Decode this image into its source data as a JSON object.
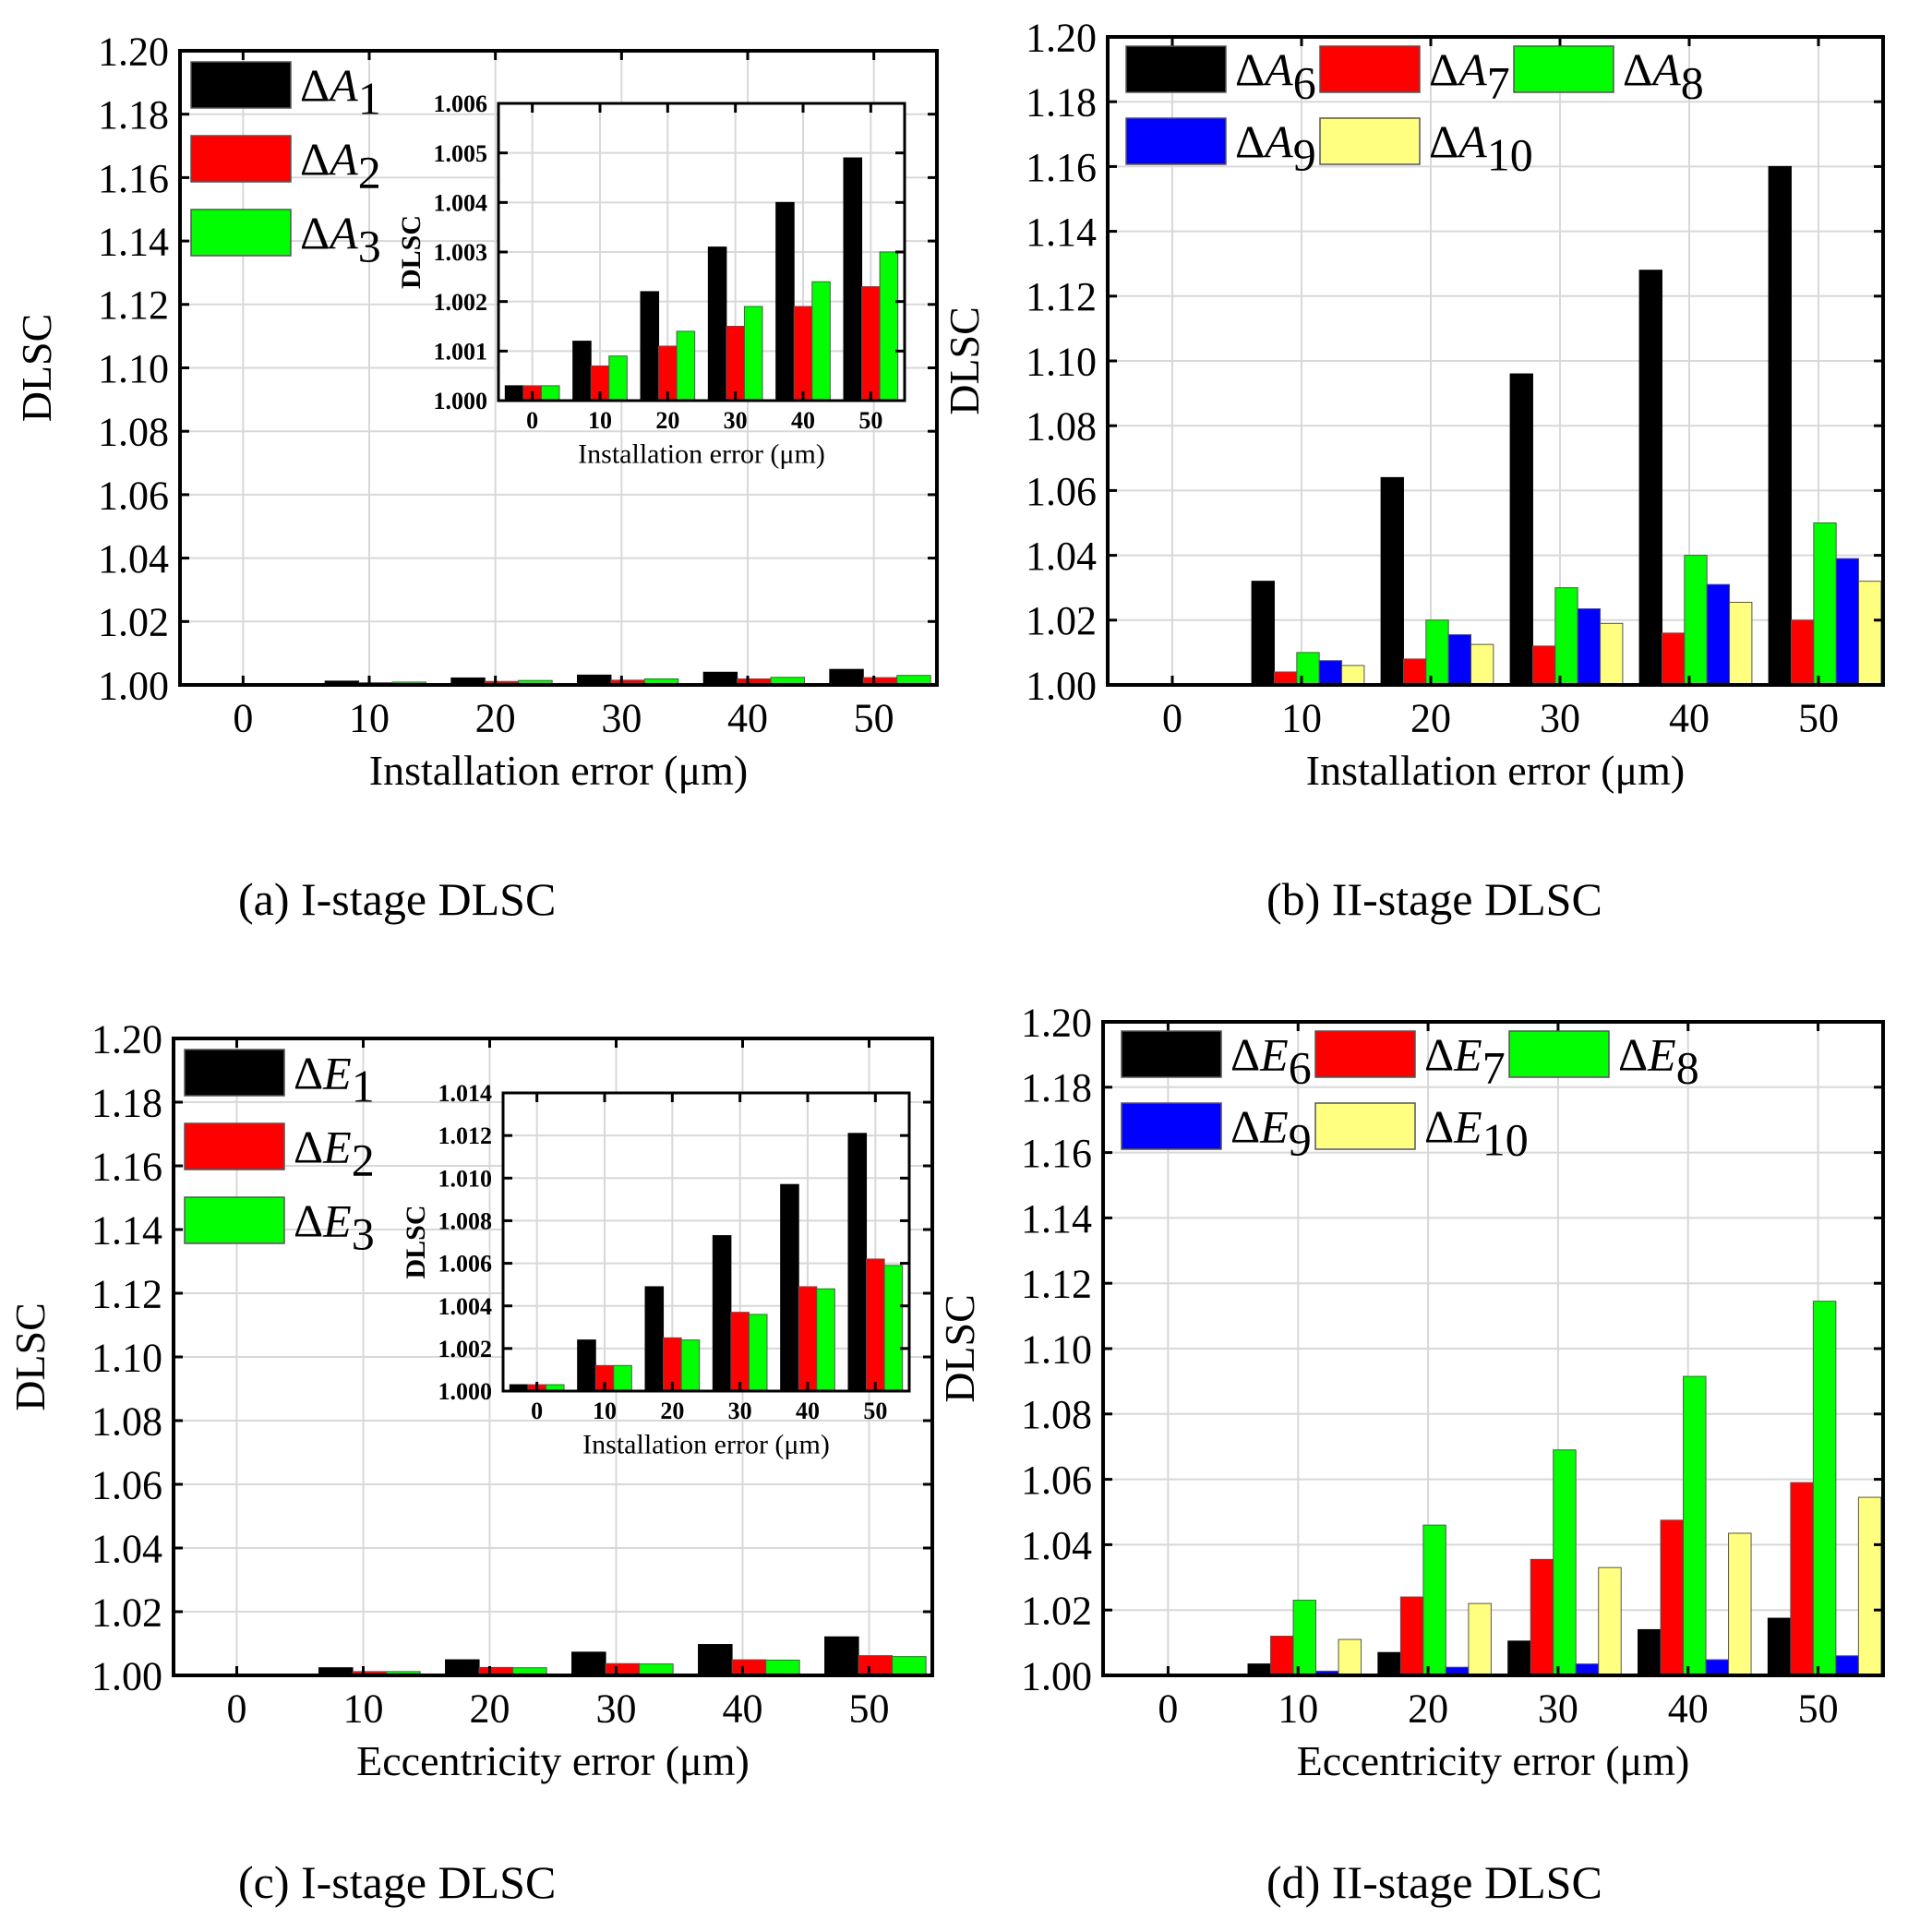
{
  "figure": {
    "captions": [
      "(a) I-stage DLSC",
      "(b) II-stage DLSC",
      "(c) I-stage DLSC",
      "(d) II-stage DLSC"
    ]
  },
  "chart_data": [
    {
      "id": "a",
      "type": "bar",
      "title": "(a) I-stage DLSC",
      "xlabel": "Installation error (μm)",
      "ylabel": "DLSC",
      "categories": [
        "0",
        "10",
        "20",
        "30",
        "40",
        "50"
      ],
      "ylim": [
        1.0,
        1.2
      ],
      "yticks": [
        "1.00",
        "1.02",
        "1.04",
        "1.06",
        "1.08",
        "1.10",
        "1.12",
        "1.14",
        "1.16",
        "1.18",
        "1.20"
      ],
      "grid": true,
      "legend": "top-left",
      "series": [
        {
          "name": "ΔA1",
          "sym": "A",
          "sub": "1",
          "color": "#000000",
          "values": [
            1.0003,
            1.0012,
            1.0022,
            1.0031,
            1.004,
            1.0049
          ]
        },
        {
          "name": "ΔA2",
          "sym": "A",
          "sub": "2",
          "color": "#ff0000",
          "values": [
            1.0003,
            1.0007,
            1.0011,
            1.0015,
            1.0019,
            1.0023
          ]
        },
        {
          "name": "ΔA3",
          "sym": "A",
          "sub": "3",
          "color": "#00ff00",
          "values": [
            1.0003,
            1.0009,
            1.0014,
            1.0019,
            1.0024,
            1.003
          ]
        }
      ],
      "inset": {
        "xlabel": "Installation error (μm)",
        "ylabel": "DLSC",
        "ylim": [
          1.0,
          1.006
        ],
        "yticks": [
          "1.000",
          "1.001",
          "1.002",
          "1.003",
          "1.004",
          "1.005",
          "1.006"
        ]
      }
    },
    {
      "id": "b",
      "type": "bar",
      "title": "(b) II-stage DLSC",
      "xlabel": "Installation error (μm)",
      "ylabel": "DLSC",
      "categories": [
        "0",
        "10",
        "20",
        "30",
        "40",
        "50"
      ],
      "ylim": [
        1.0,
        1.2
      ],
      "yticks": [
        "1.00",
        "1.02",
        "1.04",
        "1.06",
        "1.08",
        "1.10",
        "1.12",
        "1.14",
        "1.16",
        "1.18",
        "1.20"
      ],
      "grid": true,
      "legend": "top-left",
      "series": [
        {
          "name": "ΔA6",
          "sym": "A",
          "sub": "6",
          "color": "#000000",
          "values": [
            1.0002,
            1.032,
            1.064,
            1.096,
            1.128,
            1.16
          ]
        },
        {
          "name": "ΔA7",
          "sym": "A",
          "sub": "7",
          "color": "#ff0000",
          "values": [
            1.0002,
            1.004,
            1.008,
            1.012,
            1.016,
            1.02
          ]
        },
        {
          "name": "ΔA8",
          "sym": "A",
          "sub": "8",
          "color": "#00ff00",
          "values": [
            1.0002,
            1.01,
            1.02,
            1.03,
            1.04,
            1.05
          ]
        },
        {
          "name": "ΔA9",
          "sym": "A",
          "sub": "9",
          "color": "#0000ff",
          "values": [
            1.0002,
            1.0075,
            1.0155,
            1.0235,
            1.031,
            1.039
          ]
        },
        {
          "name": "ΔA10",
          "sym": "A",
          "sub": "10",
          "color": "#ffff80",
          "values": [
            1.0002,
            1.006,
            1.0125,
            1.019,
            1.0255,
            1.032
          ]
        }
      ]
    },
    {
      "id": "c",
      "type": "bar",
      "title": "(c) I-stage DLSC",
      "xlabel": "Eccentricity error (μm)",
      "ylabel": "DLSC",
      "categories": [
        "0",
        "10",
        "20",
        "30",
        "40",
        "50"
      ],
      "ylim": [
        1.0,
        1.2
      ],
      "yticks": [
        "1.00",
        "1.02",
        "1.04",
        "1.06",
        "1.08",
        "1.10",
        "1.12",
        "1.14",
        "1.16",
        "1.18",
        "1.20"
      ],
      "grid": true,
      "legend": "top-left",
      "series": [
        {
          "name": "ΔE1",
          "sym": "E",
          "sub": "1",
          "color": "#000000",
          "values": [
            1.0003,
            1.0024,
            1.0049,
            1.0073,
            1.0097,
            1.0121
          ]
        },
        {
          "name": "ΔE2",
          "sym": "E",
          "sub": "2",
          "color": "#ff0000",
          "values": [
            1.0003,
            1.0012,
            1.0025,
            1.0037,
            1.0049,
            1.0062
          ]
        },
        {
          "name": "ΔE3",
          "sym": "E",
          "sub": "3",
          "color": "#00ff00",
          "values": [
            1.0003,
            1.0012,
            1.0024,
            1.0036,
            1.0048,
            1.0059
          ]
        }
      ],
      "inset": {
        "xlabel": "Installation error (μm)",
        "ylabel": "DLSC",
        "ylim": [
          1.0,
          1.014
        ],
        "yticks": [
          "1.000",
          "1.002",
          "1.004",
          "1.006",
          "1.008",
          "1.010",
          "1.012",
          "1.014"
        ]
      }
    },
    {
      "id": "d",
      "type": "bar",
      "title": "(d) II-stage DLSC",
      "xlabel": "Eccentricity error (μm)",
      "ylabel": "DLSC",
      "categories": [
        "0",
        "10",
        "20",
        "30",
        "40",
        "50"
      ],
      "ylim": [
        1.0,
        1.2
      ],
      "yticks": [
        "1.00",
        "1.02",
        "1.04",
        "1.06",
        "1.08",
        "1.10",
        "1.12",
        "1.14",
        "1.16",
        "1.18",
        "1.20"
      ],
      "grid": true,
      "legend": "top-left",
      "series": [
        {
          "name": "ΔE6",
          "sym": "E",
          "sub": "6",
          "color": "#000000",
          "values": [
            1.0,
            1.0035,
            1.007,
            1.0105,
            1.014,
            1.0175
          ]
        },
        {
          "name": "ΔE7",
          "sym": "E",
          "sub": "7",
          "color": "#ff0000",
          "values": [
            1.0,
            1.012,
            1.024,
            1.0355,
            1.0475,
            1.059
          ]
        },
        {
          "name": "ΔE8",
          "sym": "E",
          "sub": "8",
          "color": "#00ff00",
          "values": [
            1.0,
            1.023,
            1.046,
            1.069,
            1.0915,
            1.1145
          ]
        },
        {
          "name": "ΔE9",
          "sym": "E",
          "sub": "9",
          "color": "#0000ff",
          "values": [
            1.0,
            1.0013,
            1.0025,
            1.0035,
            1.0048,
            1.006
          ]
        },
        {
          "name": "ΔE10",
          "sym": "E",
          "sub": "10",
          "color": "#ffff80",
          "values": [
            1.0,
            1.011,
            1.022,
            1.033,
            1.0435,
            1.0545
          ]
        }
      ]
    }
  ]
}
